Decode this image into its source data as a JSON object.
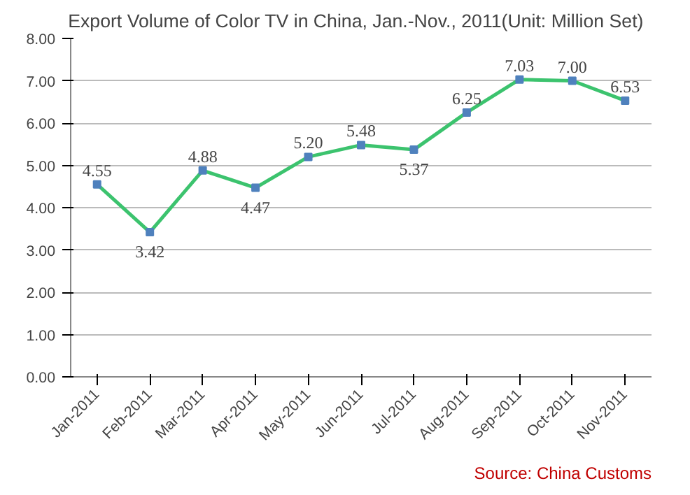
{
  "chart_data": {
    "type": "line",
    "title": "Export Volume of Color TV in China, Jan.-Nov.,  2011(Unit:  Million Set)",
    "categories": [
      "Jan-2011",
      "Feb-2011",
      "Mar-2011",
      "Apr-2011",
      "May-2011",
      "Jun-2011",
      "Jul-2011",
      "Aug-2011",
      "Sep-2011",
      "Oct-2011",
      "Nov-2011"
    ],
    "series": [
      {
        "color": "#3cc36e",
        "values": [
          4.55,
          3.42,
          4.88,
          4.47,
          5.2,
          5.48,
          5.37,
          6.25,
          7.03,
          7.0,
          6.53
        ],
        "value_labels": [
          "4.55",
          "3.42",
          "4.88",
          "4.47",
          "5.20",
          "5.48",
          "5.37",
          "6.25",
          "7.03",
          "7.00",
          "6.53"
        ]
      }
    ],
    "ylim": [
      0,
      8
    ],
    "yticks": [
      {
        "value": 0,
        "label": "0.00"
      },
      {
        "value": 1,
        "label": "1.00"
      },
      {
        "value": 2,
        "label": "2.00"
      },
      {
        "value": 3,
        "label": "3.00"
      },
      {
        "value": 4,
        "label": "4.00"
      },
      {
        "value": 5,
        "label": "5.00"
      },
      {
        "value": 6,
        "label": "6.00"
      },
      {
        "value": 7,
        "label": "7.00"
      },
      {
        "value": 8,
        "label": "8.00"
      }
    ],
    "grid": "y",
    "marker": "square",
    "line_style": "solid",
    "annotations": [
      "Source: China Customs"
    ]
  }
}
